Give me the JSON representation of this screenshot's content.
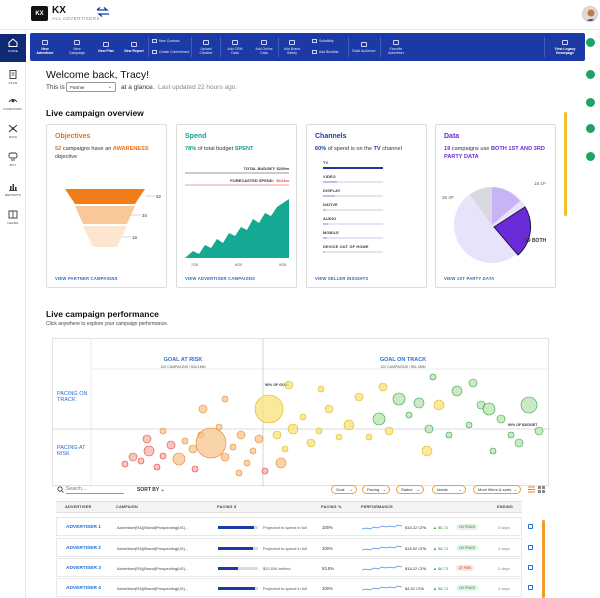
{
  "app": {
    "logo": "KX",
    "name": "KX",
    "subtitle": "ALL ADVERTISERS"
  },
  "nav": [
    {
      "label": "HOME",
      "icon": "home-icon",
      "active": true
    },
    {
      "label": "PLAN",
      "icon": "plan-icon"
    },
    {
      "label": "INVENTORY",
      "icon": "inventory-icon"
    },
    {
      "label": "DATA",
      "icon": "data-icon"
    },
    {
      "label": "BUY",
      "icon": "buy-icon"
    },
    {
      "label": "REPORTS",
      "icon": "reports-icon"
    },
    {
      "label": "LEARN",
      "icon": "learn-icon"
    }
  ],
  "toolbar": {
    "new_advertiser": "New Advertiser",
    "new_campaign": "New Campaign",
    "new_plan": "New Plan",
    "new_report": "New Report",
    "new_contract": "New Contract",
    "create_commitment": "Create Commitment",
    "upload_creative": "Upload Creative",
    "add_crm": "Add CRM Data",
    "add_online": "Add Online Data",
    "add_brand_safety": "Add Brand Safety",
    "suitability": "Suitability",
    "add_blocklist": "Add Blocklist",
    "build_audience": "Build Audience",
    "favorite_advertiser": "Favorite Advertiser",
    "legacy_homepage": "View Legacy Homepage"
  },
  "welcome": {
    "greeting": "Welcome back, Tracy!",
    "this_is": "This is",
    "role": "Partner",
    "at_a_glance": "at a glance.",
    "updated": "Last updated 22 hours ago."
  },
  "overview": {
    "title": "Live campaign overview",
    "objectives": {
      "title": "Objectives",
      "count": "52",
      "text_pre": "campaigns have an",
      "highlight": "AWARENESS",
      "text_post": "objective",
      "funnel_values": [
        52,
        34,
        16
      ],
      "link": "VIEW PARTNER CAMPAIGNS"
    },
    "spend": {
      "title": "Spend",
      "pct": "78%",
      "text_pre": "of total budget",
      "highlight": "SPENT",
      "total_budget_label": "TOTAL BUDGET: $229m",
      "forecast_label": "FORECASTED SPEND:",
      "forecast_value": "$121m",
      "x_ticks": [
        "7/28",
        "8/25",
        "9/28"
      ],
      "link": "VIEW ADVERTISER CAMPAIGNS"
    },
    "channels": {
      "title": "Channels",
      "pct": "60%",
      "text_pre": "of spend is on the",
      "highlight": "TV",
      "text_post": "channel",
      "items": [
        {
          "label": "TV",
          "value": 0.6
        },
        {
          "label": "VIDEO",
          "value": 0.14
        },
        {
          "label": "DISPLAY",
          "value": 0.12
        },
        {
          "label": "NATIVE",
          "value": 0.03
        },
        {
          "label": "AUDIO",
          "value": 0.05
        },
        {
          "label": "MOBILE",
          "value": 0.04
        },
        {
          "label": "DEVICE OUT OF HOME",
          "value": 0.02
        }
      ],
      "link": "VIEW SELLER INSIGHTS"
    },
    "data": {
      "title": "Data",
      "count": "19",
      "text_pre": "campaigns use",
      "highlight": "BOTH 1ST AND 3RD PARTY DATA",
      "link": "VIEW 1ST PARTY DATA"
    }
  },
  "performance": {
    "title": "Live campaign performance",
    "subtitle": "Click anywhere to explore your campaign performance.",
    "goal_at_risk": "GOAL AT RISK",
    "goal_at_risk_sub": "120 CAMPAIGNS / $34.1MM",
    "goal_on_track": "GOAL ON TRACK",
    "goal_on_track_sub": "120 CAMPAIGNS / $51.4MM",
    "pacing_on_track": "PACING ON TRACK",
    "pacing_at_risk": "PACING AT RISK",
    "pct_goal": "90% OF GOAL",
    "pct_budget": "90% OF BUDGET"
  },
  "filters": {
    "search_placeholder": "Search...",
    "sort_by": "SORT BY",
    "goal": "Goal",
    "pacing": "Pacing",
    "status": "Status",
    "ideals": "Ideals",
    "more": "More filters & sorts"
  },
  "table": {
    "headers": [
      "ADVERTISER",
      "CAMPAIGN",
      "PACING $",
      "PACING %",
      "PERFORMANCE",
      "ENDING"
    ],
    "rows": [
      {
        "advertiser": "ADVERTISER 1",
        "campaign": "Advertiser(RA)|Brand|Prospecting|US|...",
        "pacing": 0.9,
        "note": "Projected to spend in full",
        "pct": "100%",
        "cpa": "$18.22 CPA",
        "change": "▲ $6.73",
        "status": "ON TRACK",
        "risk": false,
        "ending": "3 days"
      },
      {
        "advertiser": "ADVERTISER 2",
        "campaign": "Advertiser(RA)|Brand|Prospecting|US|...",
        "pacing": 0.88,
        "note": "Projected to spend in full",
        "pct": "100%",
        "cpa": "$18.52 CPA",
        "change": "▲ $6.73",
        "status": "ON TRACK",
        "risk": false,
        "ending": "3 days"
      },
      {
        "advertiser": "ADVERTISER 3",
        "campaign": "Advertiser(RA)|Brand|Prospecting|US|...",
        "pacing": 0.5,
        "note": "$20,536 behind",
        "pct": "53.5%",
        "cpa": "$18.22 CPA",
        "change": "▲ $6.73",
        "status": "AT RISK",
        "risk": true,
        "ending": "3 days"
      },
      {
        "advertiser": "ADVERTISER 4",
        "campaign": "Advertiser(RA)|Brand|Prospecting|US|...",
        "pacing": 0.92,
        "note": "Projected to spend in full",
        "pct": "100%",
        "cpa": "$4.52 CPA",
        "change": "▲ $6.73",
        "status": "ON TRACK",
        "risk": false,
        "ending": "3 days"
      }
    ]
  },
  "colors": {
    "brand": "#1b3aa6",
    "accent": "#f07d1a",
    "green": "#1fa364",
    "purple": "#6c2bd9"
  }
}
